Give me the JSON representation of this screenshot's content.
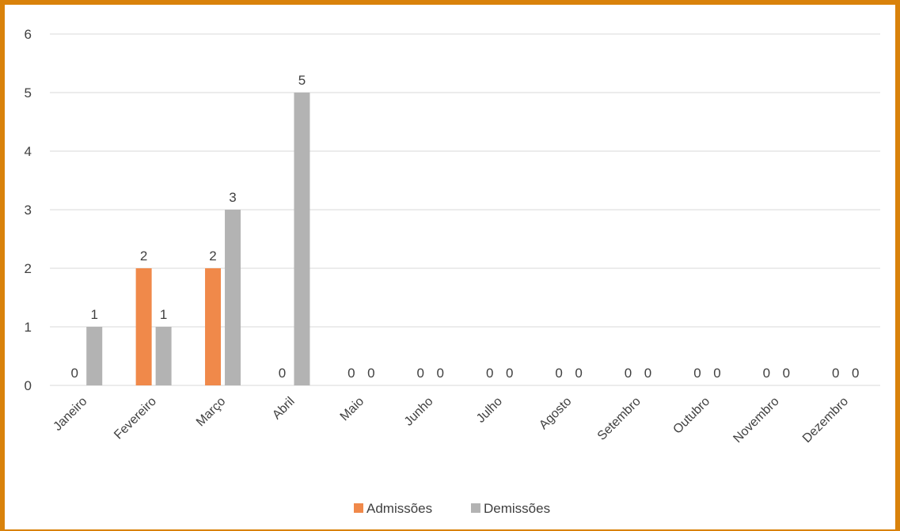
{
  "chart_data": {
    "type": "bar",
    "title": "",
    "xlabel": "",
    "ylabel": "",
    "ylim": [
      0,
      6
    ],
    "yticks": [
      0,
      1,
      2,
      3,
      4,
      5,
      6
    ],
    "grid": true,
    "legend_position": "bottom",
    "categories": [
      "Janeiro",
      "Fevereiro",
      "Março",
      "Abril",
      "Maio",
      "Junho",
      "Julho",
      "Agosto",
      "Setembro",
      "Outubro",
      "Novembro",
      "Dezembro"
    ],
    "series": [
      {
        "name": "Admissões",
        "color": "#F0894A",
        "values": [
          0,
          2,
          2,
          0,
          0,
          0,
          0,
          0,
          0,
          0,
          0,
          0
        ]
      },
      {
        "name": "Demissões",
        "color": "#B3B3B3",
        "values": [
          1,
          1,
          3,
          5,
          0,
          0,
          0,
          0,
          0,
          0,
          0,
          0
        ]
      }
    ]
  },
  "colors": {
    "frame_border": "#D9820B",
    "gridline": "#D9D9D9",
    "text": "#404040"
  }
}
